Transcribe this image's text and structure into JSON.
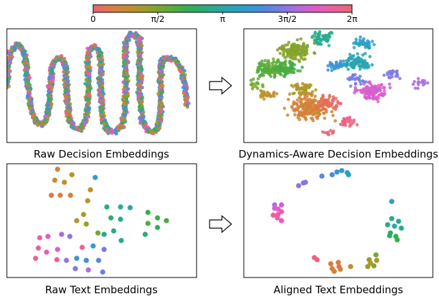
{
  "colorbar": {
    "tick_labels": [
      "0",
      "π/2",
      "π",
      "3π/2",
      "2π"
    ],
    "tick_values": [
      0,
      1.5708,
      3.1416,
      4.7124,
      6.2832
    ],
    "range": [
      0,
      6.2832
    ],
    "colormap": "hue (circular)"
  },
  "arrow_glyph": "⇒",
  "chart_data": [
    {
      "type": "scatter",
      "title": "Raw Decision Embeddings",
      "xlabel": "",
      "ylabel": "",
      "axes_ticks": "none",
      "grid": false,
      "description_of_points": "dense colored points along a meandering snake-shaped curve, colors randomly mixed",
      "curve_path": [
        [
          10,
          125
        ],
        [
          12,
          95
        ],
        [
          16,
          75
        ],
        [
          25,
          65
        ],
        [
          34,
          72
        ],
        [
          38,
          90
        ],
        [
          40,
          120
        ],
        [
          44,
          155
        ],
        [
          52,
          178
        ],
        [
          60,
          182
        ],
        [
          68,
          175
        ],
        [
          72,
          150
        ],
        [
          74,
          120
        ],
        [
          76,
          100
        ],
        [
          80,
          88
        ],
        [
          88,
          84
        ],
        [
          94,
          92
        ],
        [
          97,
          110
        ],
        [
          98,
          150
        ],
        [
          101,
          175
        ],
        [
          109,
          187
        ],
        [
          118,
          188
        ],
        [
          125,
          180
        ],
        [
          128,
          160
        ],
        [
          129,
          120
        ],
        [
          128,
          90
        ],
        [
          130,
          73
        ],
        [
          137,
          68
        ],
        [
          144,
          72
        ],
        [
          147,
          90
        ],
        [
          147,
          130
        ],
        [
          150,
          175
        ],
        [
          158,
          190
        ],
        [
          168,
          192
        ],
        [
          178,
          185
        ],
        [
          182,
          165
        ],
        [
          184,
          130
        ],
        [
          183,
          85
        ],
        [
          184,
          60
        ],
        [
          190,
          50
        ],
        [
          198,
          50
        ],
        [
          203,
          58
        ],
        [
          204,
          85
        ],
        [
          204,
          140
        ],
        [
          208,
          178
        ],
        [
          218,
          193
        ],
        [
          229,
          190
        ],
        [
          234,
          172
        ],
        [
          235,
          130
        ],
        [
          234,
          103
        ],
        [
          236,
          90
        ],
        [
          245,
          85
        ],
        [
          256,
          88
        ],
        [
          265,
          102
        ],
        [
          271,
          125
        ],
        [
          272,
          155
        ]
      ],
      "ylim": [
        0,
        200
      ]
    },
    {
      "type": "scatter",
      "title": "Dynamics-Aware Decision Embeddings",
      "xlabel": "",
      "ylabel": "",
      "axes_ticks": "none",
      "grid": false,
      "clusters": [
        {
          "x": 430,
          "y": 75,
          "n": 140,
          "hue": 1.5
        },
        {
          "x": 395,
          "y": 101,
          "n": 110,
          "hue": 1.9
        },
        {
          "x": 420,
          "y": 100,
          "n": 60,
          "hue": 2.1
        },
        {
          "x": 470,
          "y": 55,
          "n": 60,
          "hue": 2.9
        },
        {
          "x": 390,
          "y": 138,
          "n": 25,
          "hue": 0.9
        },
        {
          "x": 444,
          "y": 130,
          "n": 60,
          "hue": 1.1
        },
        {
          "x": 455,
          "y": 158,
          "n": 200,
          "hue": 0.6
        },
        {
          "x": 480,
          "y": 150,
          "n": 40,
          "hue": 0.1
        },
        {
          "x": 507,
          "y": 178,
          "n": 30,
          "hue": 6.1
        },
        {
          "x": 481,
          "y": 194,
          "n": 10,
          "hue": 6.2
        },
        {
          "x": 520,
          "y": 92,
          "n": 90,
          "hue": 3.3
        },
        {
          "x": 530,
          "y": 64,
          "n": 40,
          "hue": 3.6
        },
        {
          "x": 490,
          "y": 96,
          "n": 30,
          "hue": 3.9
        },
        {
          "x": 544,
          "y": 134,
          "n": 120,
          "hue": 5.3
        },
        {
          "x": 522,
          "y": 116,
          "n": 25,
          "hue": 4.5
        },
        {
          "x": 576,
          "y": 108,
          "n": 25,
          "hue": 4.6
        },
        {
          "x": 612,
          "y": 122,
          "n": 15,
          "hue": 4.9
        },
        {
          "x": 375,
          "y": 123,
          "n": 15,
          "hue": 1.7
        }
      ],
      "ylim": [
        0,
        200
      ]
    },
    {
      "type": "scatter",
      "title": "Raw Text Embeddings",
      "xlabel": "",
      "ylabel": "",
      "axes_ticks": "none",
      "grid": false,
      "points": [
        [
          84,
          247,
          0.6
        ],
        [
          80,
          263,
          0.7
        ],
        [
          94,
          266,
          0.9
        ],
        [
          105,
          255,
          1.0
        ],
        [
          75,
          285,
          0.4
        ],
        [
          88,
          285,
          0.5
        ],
        [
          103,
          285,
          0.6
        ],
        [
          132,
          277,
          1.0
        ],
        [
          128,
          293,
          1.1
        ],
        [
          122,
          313,
          1.2
        ],
        [
          139,
          259,
          3.7
        ],
        [
          112,
          322,
          1.1
        ],
        [
          126,
          327,
          1.3
        ],
        [
          156,
          302,
          2.7
        ],
        [
          176,
          302,
          2.9
        ],
        [
          190,
          303,
          3.0
        ],
        [
          162,
          318,
          2.6
        ],
        [
          176,
          320,
          2.9
        ],
        [
          152,
          342,
          2.8
        ],
        [
          166,
          337,
          2.7
        ],
        [
          177,
          351,
          2.9
        ],
        [
          143,
          340,
          1.7
        ],
        [
          216,
          310,
          2.3
        ],
        [
          216,
          326,
          2.0
        ],
        [
          230,
          318,
          2.2
        ],
        [
          243,
          322,
          2.1
        ],
        [
          230,
          332,
          2.5
        ],
        [
          212,
          342,
          2.7
        ],
        [
          58,
          347,
          5.7
        ],
        [
          70,
          345,
          5.4
        ],
        [
          90,
          342,
          5.0
        ],
        [
          102,
          345,
          4.7
        ],
        [
          56,
          362,
          5.8
        ],
        [
          68,
          368,
          5.6
        ],
        [
          84,
          364,
          5.3
        ],
        [
          120,
          361,
          5.9
        ],
        [
          136,
          359,
          3.9
        ],
        [
          152,
          364,
          4.5
        ],
        [
          52,
          377,
          5.9
        ],
        [
          83,
          379,
          6.0
        ],
        [
          97,
          380,
          4.8
        ],
        [
          112,
          377,
          3.8
        ],
        [
          126,
          380,
          4.1
        ],
        [
          144,
          380,
          4.3
        ],
        [
          110,
          392,
          4.6
        ],
        [
          129,
          394,
          5.0
        ],
        [
          150,
          397,
          4.4
        ]
      ],
      "ylim": [
        0,
        200
      ]
    },
    {
      "type": "scatter",
      "title": "Aligned Text Embeddings",
      "xlabel": "",
      "ylabel": "",
      "axes_ticks": "none",
      "grid": false,
      "points": [
        [
          492,
          251,
          3.8
        ],
        [
          499,
          249,
          3.9
        ],
        [
          507,
          252,
          3.6
        ],
        [
          509,
          255,
          3.5
        ],
        [
          485,
          255,
          4.1
        ],
        [
          470,
          257,
          4.3
        ],
        [
          446,
          266,
          4.7
        ],
        [
          443,
          267,
          4.6
        ],
        [
          436,
          271,
          4.8
        ],
        [
          411,
          299,
          5.2
        ],
        [
          401,
          299,
          5.0
        ],
        [
          406,
          305,
          5.5
        ],
        [
          411,
          309,
          5.7
        ],
        [
          401,
          304,
          5.3
        ],
        [
          406,
          313,
          5.6
        ],
        [
          399,
          314,
          5.9
        ],
        [
          405,
          318,
          5.8
        ],
        [
          411,
          322,
          5.4
        ],
        [
          572,
          294,
          3.2
        ],
        [
          572,
          319,
          2.8
        ],
        [
          582,
          323,
          3.0
        ],
        [
          586,
          333,
          2.9
        ],
        [
          576,
          330,
          3.1
        ],
        [
          570,
          340,
          2.6
        ],
        [
          578,
          345,
          2.3
        ],
        [
          580,
          350,
          2.2
        ],
        [
          569,
          344,
          2.4
        ],
        [
          566,
          328,
          2.7
        ],
        [
          549,
          372,
          1.6
        ],
        [
          550,
          380,
          1.2
        ],
        [
          539,
          379,
          1.4
        ],
        [
          541,
          384,
          1.1
        ],
        [
          537,
          389,
          1.3
        ],
        [
          546,
          388,
          1.5
        ],
        [
          459,
          376,
          6.0
        ],
        [
          463,
          379,
          6.1
        ],
        [
          483,
          385,
          0.4
        ],
        [
          494,
          383,
          0.6
        ],
        [
          497,
          393,
          0.7
        ],
        [
          485,
          392,
          0.5
        ],
        [
          512,
          389,
          0.9
        ],
        [
          488,
          396,
          0.6
        ],
        [
          495,
          389,
          0.3
        ]
      ],
      "ylim": [
        0,
        200
      ]
    }
  ]
}
